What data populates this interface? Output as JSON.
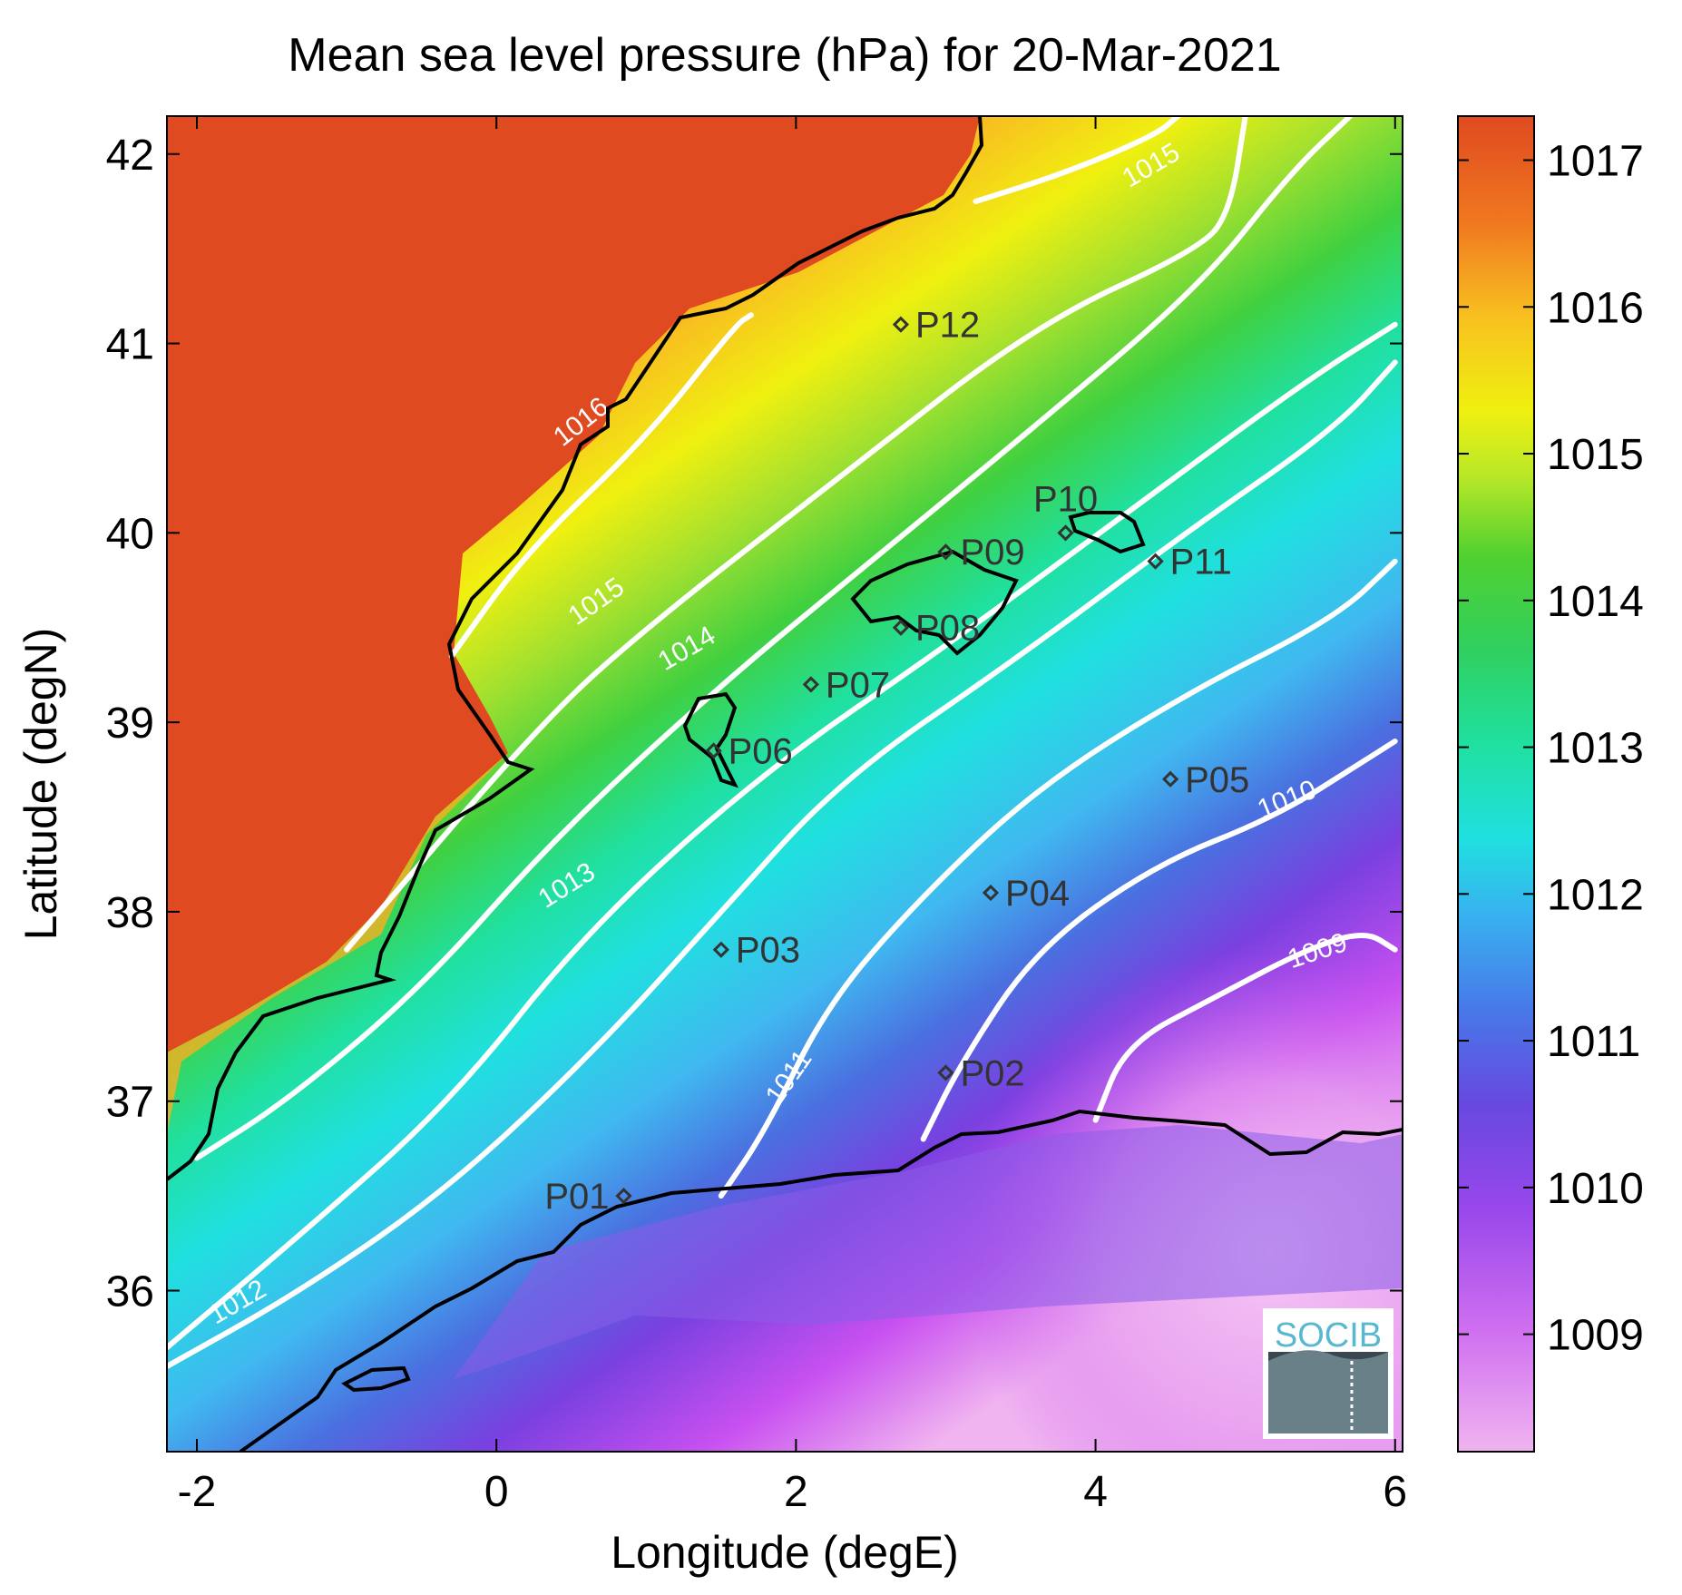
{
  "title": "Mean sea level pressure (hPa) for 20-Mar-2021",
  "xlabel": "Longitude (degE)",
  "ylabel": "Latitude (degN)",
  "logo_text": "SOCIB",
  "chart_data": {
    "type": "heatmap",
    "xlim": [
      -2.2,
      6.05
    ],
    "ylim": [
      35.15,
      42.2
    ],
    "x_ticks": [
      -2,
      0,
      2,
      4,
      6
    ],
    "x_tick_labels": [
      "-2",
      "0",
      "2",
      "4",
      "6"
    ],
    "y_ticks": [
      36,
      37,
      38,
      39,
      40,
      41,
      42
    ],
    "y_tick_labels": [
      "36",
      "37",
      "38",
      "39",
      "40",
      "41",
      "42"
    ],
    "colorbar": {
      "range": [
        1008.2,
        1017.3
      ],
      "ticks": [
        1009,
        1010,
        1011,
        1012,
        1013,
        1014,
        1015,
        1016,
        1017
      ],
      "tick_labels": [
        "1009",
        "1010",
        "1011",
        "1012",
        "1013",
        "1014",
        "1015",
        "1016",
        "1017"
      ],
      "colors": [
        "#f0b4f0",
        "#c850f0",
        "#7a40e0",
        "#4a70e0",
        "#40b8f0",
        "#20e8d8",
        "#30d880",
        "#40d040",
        "#a0e030",
        "#f0f010",
        "#f8c020",
        "#f08020",
        "#e04a20"
      ]
    },
    "contours": [
      {
        "level": 1016,
        "label": "1016",
        "label_pos": [
          0.6,
          40.55
        ],
        "label_angle": -38,
        "points": [
          [
            -0.3,
            39.35
          ],
          [
            0.2,
            39.9
          ],
          [
            1.0,
            40.5
          ],
          [
            1.6,
            41.1
          ],
          [
            1.7,
            41.15
          ]
        ]
      },
      {
        "level": 1015,
        "label": "1015",
        "label_pos": [
          0.7,
          39.6
        ],
        "label_angle": -35,
        "points": [
          [
            -1.0,
            37.8
          ],
          [
            0.3,
            39.0
          ],
          [
            1.0,
            39.5
          ],
          [
            2.3,
            40.3
          ],
          [
            3.6,
            41.1
          ],
          [
            4.7,
            41.5
          ],
          [
            4.9,
            41.7
          ],
          [
            5.0,
            42.2
          ]
        ]
      },
      {
        "level": 1015,
        "label": "1015",
        "label_pos": [
          4.4,
          41.9
        ],
        "label_angle": -30,
        "points": [
          [
            3.2,
            41.75
          ],
          [
            3.8,
            41.9
          ],
          [
            4.4,
            42.1
          ],
          [
            4.55,
            42.2
          ]
        ]
      },
      {
        "level": 1014,
        "label": "1014",
        "label_pos": [
          1.3,
          39.35
        ],
        "label_angle": -30,
        "points": [
          [
            -2.0,
            36.7
          ],
          [
            -1.4,
            37.0
          ],
          [
            -0.5,
            37.6
          ],
          [
            0.4,
            38.4
          ],
          [
            1.5,
            39.2
          ],
          [
            2.5,
            39.85
          ],
          [
            3.5,
            40.5
          ],
          [
            4.7,
            41.3
          ],
          [
            5.3,
            41.9
          ],
          [
            5.7,
            42.2
          ]
        ]
      },
      {
        "level": 1013,
        "label": "1013",
        "label_pos": [
          0.5,
          38.1
        ],
        "label_angle": -32,
        "points": [
          [
            -2.2,
            35.7
          ],
          [
            -1.3,
            36.3
          ],
          [
            -0.3,
            37.0
          ],
          [
            0.6,
            37.9
          ],
          [
            1.8,
            38.75
          ],
          [
            3.0,
            39.4
          ],
          [
            4.2,
            40.1
          ],
          [
            5.4,
            40.8
          ],
          [
            6.0,
            41.1
          ]
        ]
      },
      {
        "level": 1012,
        "label": "1012",
        "label_pos": [
          -1.7,
          35.9
        ],
        "label_angle": -30,
        "points": [
          [
            -2.2,
            35.6
          ],
          [
            -1.3,
            36.0
          ],
          [
            -0.3,
            36.55
          ],
          [
            0.7,
            37.3
          ],
          [
            1.5,
            38.0
          ],
          [
            2.3,
            38.7
          ],
          [
            3.5,
            39.35
          ],
          [
            4.6,
            40.0
          ],
          [
            5.6,
            40.55
          ],
          [
            6.0,
            40.9
          ]
        ]
      },
      {
        "level": 1011,
        "label": "1011",
        "label_pos": [
          2.0,
          37.1
        ],
        "label_angle": -55,
        "points": [
          [
            1.5,
            36.5
          ],
          [
            1.8,
            36.85
          ],
          [
            2.2,
            37.5
          ],
          [
            2.8,
            38.05
          ],
          [
            3.6,
            38.65
          ],
          [
            4.6,
            39.15
          ],
          [
            5.6,
            39.55
          ],
          [
            6.0,
            39.85
          ]
        ]
      },
      {
        "level": 1010,
        "label": "1010",
        "label_pos": [
          5.3,
          38.55
        ],
        "label_angle": -22,
        "points": [
          [
            2.85,
            36.8
          ],
          [
            3.1,
            37.2
          ],
          [
            3.6,
            37.8
          ],
          [
            4.4,
            38.25
          ],
          [
            5.2,
            38.5
          ],
          [
            5.8,
            38.8
          ],
          [
            6.0,
            38.9
          ]
        ]
      },
      {
        "level": 1009,
        "label": "1009",
        "label_pos": [
          5.5,
          37.75
        ],
        "label_angle": -18,
        "points": [
          [
            4.0,
            36.9
          ],
          [
            4.2,
            37.3
          ],
          [
            4.8,
            37.55
          ],
          [
            5.4,
            37.8
          ],
          [
            5.8,
            37.9
          ],
          [
            6.0,
            37.8
          ]
        ]
      }
    ],
    "points": [
      {
        "name": "P01",
        "lon": 0.85,
        "lat": 36.5,
        "label_side": "left"
      },
      {
        "name": "P02",
        "lon": 3.0,
        "lat": 37.15,
        "label_side": "right"
      },
      {
        "name": "P03",
        "lon": 1.5,
        "lat": 37.8,
        "label_side": "right"
      },
      {
        "name": "P04",
        "lon": 3.3,
        "lat": 38.1,
        "label_side": "right"
      },
      {
        "name": "P05",
        "lon": 4.5,
        "lat": 38.7,
        "label_side": "right"
      },
      {
        "name": "P06",
        "lon": 1.45,
        "lat": 38.85,
        "label_side": "right"
      },
      {
        "name": "P07",
        "lon": 2.1,
        "lat": 39.2,
        "label_side": "right"
      },
      {
        "name": "P08",
        "lon": 2.7,
        "lat": 39.5,
        "label_side": "right"
      },
      {
        "name": "P09",
        "lon": 3.0,
        "lat": 39.9,
        "label_side": "right"
      },
      {
        "name": "P10",
        "lon": 3.8,
        "lat": 40.0,
        "label_side": "above"
      },
      {
        "name": "P11",
        "lon": 4.4,
        "lat": 39.85,
        "label_side": "right"
      },
      {
        "name": "P12",
        "lon": 2.7,
        "lat": 41.1,
        "label_side": "right"
      }
    ]
  }
}
